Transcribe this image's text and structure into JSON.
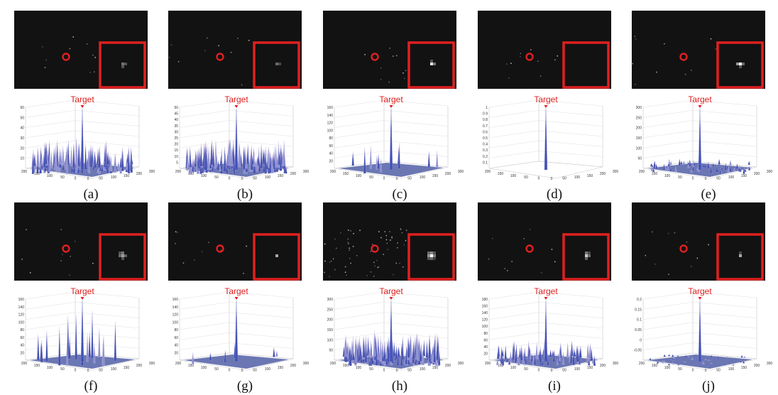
{
  "figure": {
    "target_label": "Target",
    "panels": [
      {
        "label": "(a)",
        "zmax": 60,
        "yticks": [
          "10",
          "20",
          "30",
          "40",
          "50",
          "60"
        ],
        "style": "dense",
        "patch": [
          [
            0,
            0,
            0
          ],
          [
            0,
            0.35,
            0.2
          ],
          [
            0,
            0.2,
            0
          ]
        ]
      },
      {
        "label": "(b)",
        "zmax": 50,
        "yticks": [
          "5",
          "10",
          "15",
          "20",
          "25",
          "30",
          "35",
          "40",
          "45",
          "50"
        ],
        "style": "dense",
        "patch": [
          [
            0,
            0,
            0
          ],
          [
            0,
            0.3,
            0.15
          ],
          [
            0,
            0,
            0
          ]
        ]
      },
      {
        "label": "(c)",
        "zmax": 160,
        "yticks": [
          "20",
          "40",
          "60",
          "80",
          "100",
          "120",
          "140",
          "160"
        ],
        "style": "sparse",
        "patch": [
          [
            0,
            0.2,
            0
          ],
          [
            0,
            0.85,
            0.35
          ],
          [
            0,
            0,
            0
          ]
        ]
      },
      {
        "label": "(d)",
        "zmax": 1,
        "yticks": [
          "0.1",
          "0.2",
          "0.3",
          "0.4",
          "0.5",
          "0.6",
          "0.7",
          "0.8",
          "0.9",
          "1"
        ],
        "style": "single",
        "patch": [
          [
            0,
            0,
            0
          ],
          [
            0,
            0,
            0
          ],
          [
            0,
            0,
            0
          ]
        ]
      },
      {
        "label": "(e)",
        "zmax": 300,
        "yticks": [
          "50",
          "100",
          "150",
          "200",
          "250",
          "300"
        ],
        "style": "low",
        "patch": [
          [
            0,
            0,
            0
          ],
          [
            0.5,
            1,
            0.3
          ],
          [
            0,
            0.2,
            0
          ]
        ]
      },
      {
        "label": "(f)",
        "zmax": 160,
        "yticks": [
          "20",
          "40",
          "60",
          "80",
          "100",
          "120",
          "140",
          "160"
        ],
        "style": "peaks",
        "patch": [
          [
            0.2,
            0.35,
            0
          ],
          [
            0.3,
            0.55,
            0.25
          ],
          [
            0,
            0.2,
            0
          ]
        ]
      },
      {
        "label": "(g)",
        "zmax": 160,
        "yticks": [
          "20",
          "40",
          "60",
          "80",
          "100",
          "120",
          "140",
          "160"
        ],
        "style": "sparse2",
        "patch": [
          [
            0,
            0,
            0
          ],
          [
            0,
            0.6,
            0
          ],
          [
            0,
            0,
            0
          ]
        ]
      },
      {
        "label": "(h)",
        "zmax": 300,
        "yticks": [
          "50",
          "100",
          "150",
          "200",
          "250",
          "300"
        ],
        "style": "dense",
        "patch": [
          [
            0.3,
            0.45,
            0.2
          ],
          [
            0.5,
            1,
            0.4
          ],
          [
            0.2,
            0.3,
            0.1
          ]
        ]
      },
      {
        "label": "(i)",
        "zmax": 180,
        "yticks": [
          "20",
          "40",
          "60",
          "80",
          "100",
          "120",
          "140",
          "160",
          "180"
        ],
        "style": "medium",
        "patch": [
          [
            0,
            0.35,
            0.15
          ],
          [
            0,
            0.75,
            0.3
          ],
          [
            0,
            0.25,
            0
          ]
        ]
      },
      {
        "label": "(j)",
        "zmax": 0.2,
        "yticks": [
          "-0.05",
          "0",
          "0.05",
          "0.1",
          "0.15",
          "0.2"
        ],
        "style": "flat",
        "patch": [
          [
            0,
            0.15,
            0
          ],
          [
            0,
            0.6,
            0
          ],
          [
            0,
            0,
            0
          ]
        ]
      }
    ],
    "x_ticks": [
      "200",
      "150",
      "100",
      "50",
      "0",
      "0",
      "50",
      "100",
      "150",
      "200",
      "300"
    ]
  }
}
